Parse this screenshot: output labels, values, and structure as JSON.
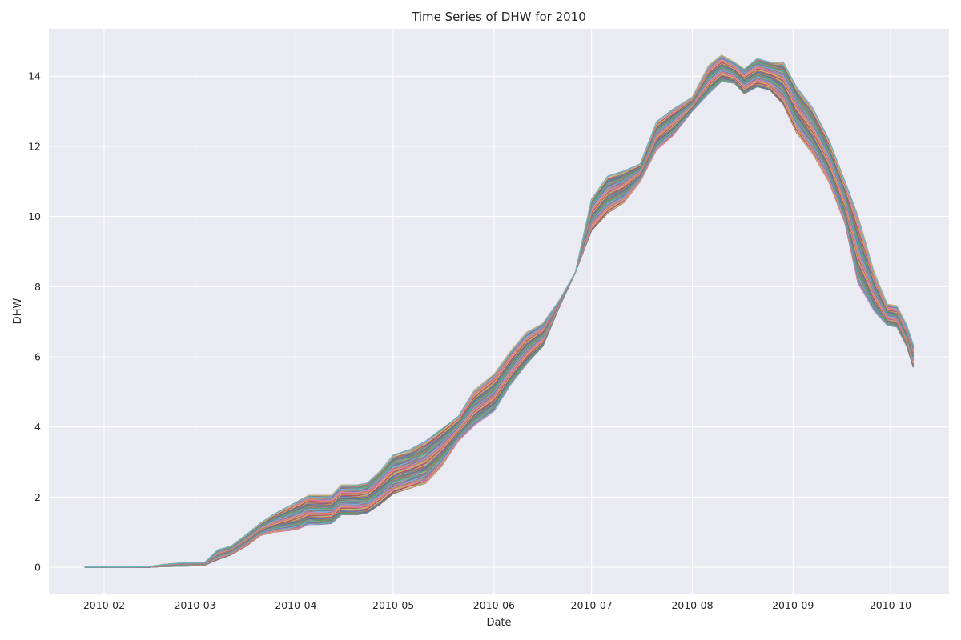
{
  "chart_data": {
    "type": "line",
    "title": "Time Series of DHW for 2010",
    "xlabel": "Date",
    "ylabel": "DHW",
    "x_type": "date",
    "xlim": [
      "2010-01-15",
      "2010-10-19"
    ],
    "ylim": [
      -0.75,
      15.35
    ],
    "grid": true,
    "legend": "none",
    "background": "#eaeaf2",
    "grid_color": "#ffffff",
    "x_ticks": [
      "2010-02",
      "2010-03",
      "2010-04",
      "2010-05",
      "2010-06",
      "2010-07",
      "2010-08",
      "2010-09",
      "2010-10"
    ],
    "y_ticks": [
      "0",
      "2",
      "4",
      "6",
      "8",
      "10",
      "12",
      "14"
    ],
    "palette": [
      "#4c72b0",
      "#dd8452",
      "#55a868",
      "#c44e52",
      "#8172b3",
      "#937860",
      "#da8bc3",
      "#8c8c8c",
      "#ccb974",
      "#64b5cd"
    ],
    "envelope": {
      "x": [
        "2010-01-26",
        "2010-02-08",
        "2010-02-15",
        "2010-02-19",
        "2010-02-25",
        "2010-03-01",
        "2010-03-04",
        "2010-03-08",
        "2010-03-12",
        "2010-03-17",
        "2010-03-21",
        "2010-03-25",
        "2010-03-30",
        "2010-04-02",
        "2010-04-05",
        "2010-04-08",
        "2010-04-12",
        "2010-04-15",
        "2010-04-20",
        "2010-04-23",
        "2010-04-27",
        "2010-05-01",
        "2010-05-06",
        "2010-05-11",
        "2010-05-16",
        "2010-05-21",
        "2010-05-26",
        "2010-06-01",
        "2010-06-06",
        "2010-06-11",
        "2010-06-16",
        "2010-06-21",
        "2010-06-26",
        "2010-07-01",
        "2010-07-06",
        "2010-07-11",
        "2010-07-16",
        "2010-07-21",
        "2010-07-26",
        "2010-08-01",
        "2010-08-06",
        "2010-08-10",
        "2010-08-14",
        "2010-08-17",
        "2010-08-21",
        "2010-08-25",
        "2010-08-29",
        "2010-09-02",
        "2010-09-07",
        "2010-09-12",
        "2010-09-17",
        "2010-09-21",
        "2010-09-26",
        "2010-09-30",
        "2010-10-03",
        "2010-10-06",
        "2010-10-08"
      ],
      "lower": [
        0,
        0,
        0,
        0.02,
        0.03,
        0.04,
        0.06,
        0.22,
        0.35,
        0.62,
        0.9,
        1.0,
        1.05,
        1.1,
        1.22,
        1.22,
        1.25,
        1.5,
        1.5,
        1.55,
        1.8,
        2.1,
        2.25,
        2.4,
        2.9,
        3.6,
        4.05,
        4.45,
        5.2,
        5.8,
        6.3,
        7.4,
        8.4,
        9.6,
        10.1,
        10.4,
        11.0,
        11.9,
        12.3,
        13.0,
        13.5,
        13.85,
        13.8,
        13.5,
        13.7,
        13.6,
        13.2,
        12.4,
        11.8,
        11.0,
        9.8,
        8.1,
        7.3,
        6.9,
        6.85,
        6.3,
        5.7
      ],
      "upper": [
        0.01,
        0.01,
        0.02,
        0.08,
        0.13,
        0.13,
        0.14,
        0.5,
        0.6,
        0.95,
        1.25,
        1.5,
        1.75,
        1.9,
        2.05,
        2.05,
        2.05,
        2.35,
        2.35,
        2.4,
        2.75,
        3.2,
        3.35,
        3.6,
        3.95,
        4.3,
        5.05,
        5.5,
        6.15,
        6.7,
        6.95,
        7.6,
        8.4,
        10.5,
        11.15,
        11.3,
        11.5,
        12.7,
        13.05,
        13.4,
        14.3,
        14.6,
        14.4,
        14.2,
        14.5,
        14.4,
        14.4,
        13.7,
        13.1,
        12.2,
        11.0,
        10.0,
        8.4,
        7.5,
        7.45,
        6.9,
        6.35
      ]
    }
  }
}
